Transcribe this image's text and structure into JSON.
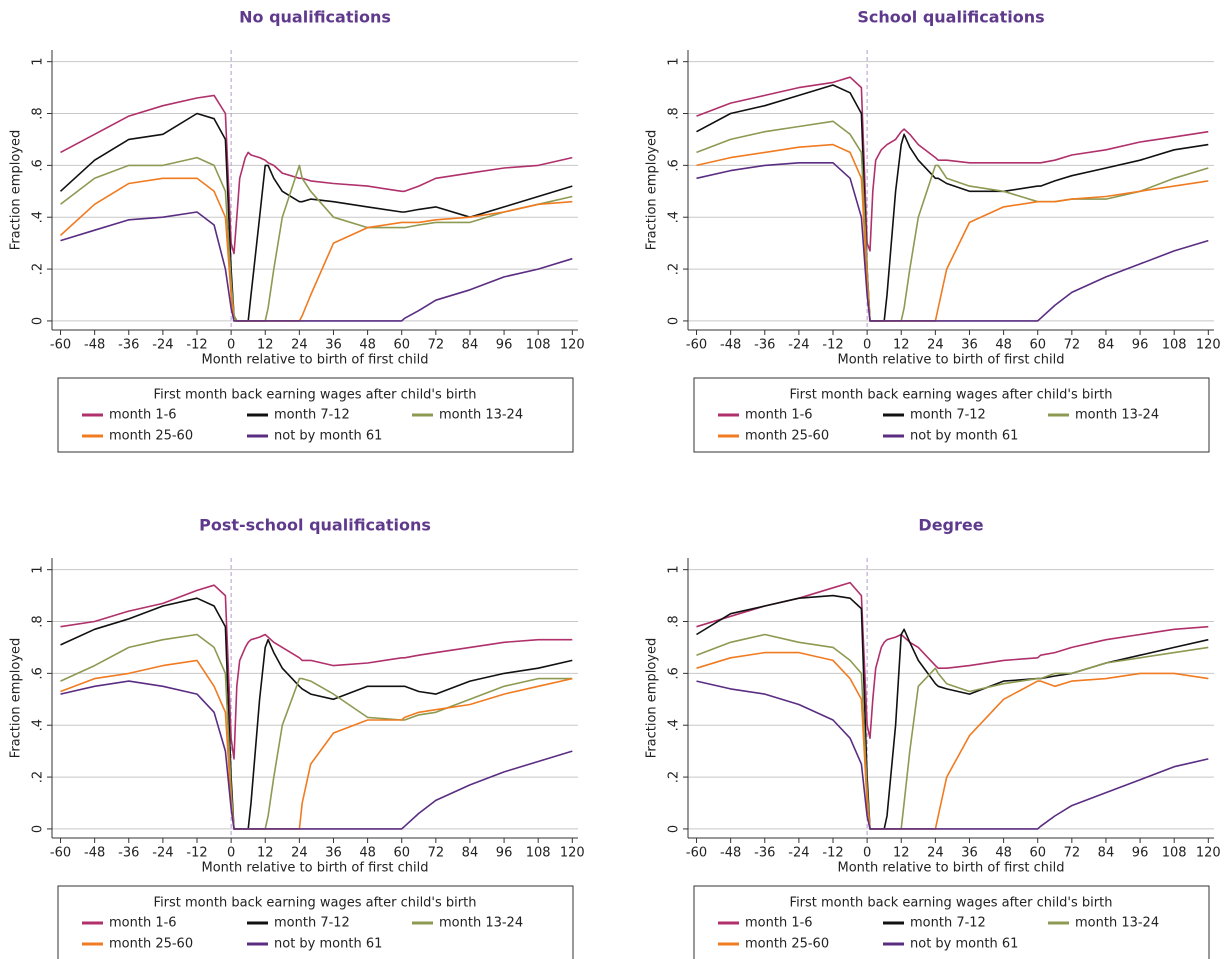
{
  "chart_data": [
    {
      "type": "line",
      "title": "No qualifications",
      "x_label": "Month relative to birth of first child",
      "y_label": "Fraction employed",
      "legend_title": "First month back earning wages after child's birth",
      "x": [
        -60,
        -48,
        -36,
        -24,
        -12,
        -6,
        -2,
        0,
        1,
        2,
        3,
        5,
        6,
        7,
        10,
        12,
        13,
        15,
        18,
        24,
        25,
        28,
        36,
        48,
        60,
        61,
        66,
        72,
        84,
        96,
        108,
        120
      ],
      "series": [
        {
          "name": "month 1-6",
          "color": "#b0306b",
          "values": [
            0.65,
            0.72,
            0.79,
            0.83,
            0.86,
            0.87,
            0.8,
            0.3,
            0.26,
            0.4,
            0.55,
            0.63,
            0.65,
            0.64,
            0.63,
            0.62,
            0.61,
            0.6,
            0.57,
            0.55,
            0.55,
            0.54,
            0.53,
            0.52,
            0.5,
            0.5,
            0.52,
            0.55,
            0.57,
            0.59,
            0.6,
            0.63
          ]
        },
        {
          "name": "month 7-12",
          "color": "#111111",
          "values": [
            0.5,
            0.62,
            0.7,
            0.72,
            0.8,
            0.78,
            0.7,
            0.2,
            0.02,
            0,
            0,
            0,
            0,
            0.1,
            0.4,
            0.6,
            0.6,
            0.55,
            0.5,
            0.46,
            0.46,
            0.47,
            0.46,
            0.44,
            0.42,
            0.42,
            0.43,
            0.44,
            0.4,
            0.44,
            0.48,
            0.52
          ]
        },
        {
          "name": "month 13-24",
          "color": "#8c9a52",
          "values": [
            0.45,
            0.55,
            0.6,
            0.6,
            0.63,
            0.6,
            0.5,
            0.15,
            0.02,
            0,
            0,
            0,
            0,
            0,
            0,
            0,
            0.05,
            0.2,
            0.4,
            0.6,
            0.55,
            0.5,
            0.4,
            0.36,
            0.36,
            0.36,
            0.37,
            0.38,
            0.38,
            0.42,
            0.45,
            0.48
          ]
        },
        {
          "name": "month 25-60",
          "color": "#f07b21",
          "values": [
            0.33,
            0.45,
            0.53,
            0.55,
            0.55,
            0.5,
            0.4,
            0.1,
            0,
            0,
            0,
            0,
            0,
            0,
            0,
            0,
            0,
            0,
            0,
            0,
            0.02,
            0.1,
            0.3,
            0.36,
            0.38,
            0.38,
            0.38,
            0.39,
            0.4,
            0.42,
            0.45,
            0.46
          ]
        },
        {
          "name": "not by month 61",
          "color": "#5a2d82",
          "values": [
            0.31,
            0.35,
            0.39,
            0.4,
            0.42,
            0.37,
            0.2,
            0.05,
            0,
            0,
            0,
            0,
            0,
            0,
            0,
            0,
            0,
            0,
            0,
            0,
            0,
            0,
            0,
            0,
            0,
            0.01,
            0.04,
            0.08,
            0.12,
            0.17,
            0.2,
            0.24
          ]
        }
      ],
      "xlim": [
        -63,
        122
      ],
      "ylim": [
        -0.035,
        1.045
      ],
      "xticks": [
        -60,
        -48,
        -36,
        -24,
        -12,
        0,
        12,
        24,
        36,
        48,
        60,
        72,
        84,
        96,
        108,
        120
      ],
      "yticks": [
        0,
        {
          "value": 0.2,
          "label": ".2"
        },
        {
          "value": 0.4,
          "label": ".4"
        },
        {
          "value": 0.6,
          "label": ".6"
        },
        {
          "value": 0.8,
          "label": ".8"
        },
        1
      ],
      "grid": true,
      "vline": 0
    },
    {
      "type": "line",
      "title": "School qualifications",
      "x_label": "Month relative to birth of first child",
      "y_label": "Fraction employed",
      "legend_title": "First month back earning wages after child's birth",
      "x": [
        -60,
        -48,
        -36,
        -24,
        -12,
        -6,
        -2,
        0,
        1,
        2,
        3,
        5,
        6,
        7,
        10,
        12,
        13,
        15,
        18,
        24,
        25,
        28,
        36,
        48,
        60,
        61,
        66,
        72,
        84,
        96,
        108,
        120
      ],
      "series": [
        {
          "name": "month 1-6",
          "color": "#b0306b",
          "values": [
            0.79,
            0.84,
            0.87,
            0.9,
            0.92,
            0.94,
            0.9,
            0.3,
            0.27,
            0.5,
            0.62,
            0.66,
            0.67,
            0.68,
            0.7,
            0.73,
            0.74,
            0.72,
            0.68,
            0.63,
            0.62,
            0.62,
            0.61,
            0.61,
            0.61,
            0.61,
            0.62,
            0.64,
            0.66,
            0.69,
            0.71,
            0.73
          ]
        },
        {
          "name": "month 7-12",
          "color": "#111111",
          "values": [
            0.73,
            0.8,
            0.83,
            0.87,
            0.91,
            0.88,
            0.8,
            0.2,
            0,
            0,
            0,
            0,
            0,
            0.1,
            0.5,
            0.68,
            0.72,
            0.67,
            0.62,
            0.55,
            0.55,
            0.53,
            0.5,
            0.5,
            0.52,
            0.52,
            0.54,
            0.56,
            0.59,
            0.62,
            0.66,
            0.68
          ]
        },
        {
          "name": "month 13-24",
          "color": "#8c9a52",
          "values": [
            0.65,
            0.7,
            0.73,
            0.75,
            0.77,
            0.72,
            0.65,
            0.2,
            0,
            0,
            0,
            0,
            0,
            0,
            0,
            0,
            0.05,
            0.2,
            0.4,
            0.6,
            0.6,
            0.55,
            0.52,
            0.5,
            0.46,
            0.46,
            0.46,
            0.47,
            0.47,
            0.5,
            0.55,
            0.59
          ]
        },
        {
          "name": "month 25-60",
          "color": "#f07b21",
          "values": [
            0.6,
            0.63,
            0.65,
            0.67,
            0.68,
            0.65,
            0.55,
            0.15,
            0,
            0,
            0,
            0,
            0,
            0,
            0,
            0,
            0,
            0,
            0,
            0,
            0.05,
            0.2,
            0.38,
            0.44,
            0.46,
            0.46,
            0.46,
            0.47,
            0.48,
            0.5,
            0.52,
            0.54
          ]
        },
        {
          "name": "not by month 61",
          "color": "#5a2d82",
          "values": [
            0.55,
            0.58,
            0.6,
            0.61,
            0.61,
            0.55,
            0.4,
            0.1,
            0,
            0,
            0,
            0,
            0,
            0,
            0,
            0,
            0,
            0,
            0,
            0,
            0,
            0,
            0,
            0,
            0,
            0.01,
            0.06,
            0.11,
            0.17,
            0.22,
            0.27,
            0.31
          ]
        }
      ],
      "xlim": [
        -63,
        122
      ],
      "ylim": [
        -0.035,
        1.045
      ],
      "xticks": [
        -60,
        -48,
        -36,
        -24,
        -12,
        0,
        12,
        24,
        36,
        48,
        60,
        72,
        84,
        96,
        108,
        120
      ],
      "yticks": [
        0,
        {
          "value": 0.2,
          "label": ".2"
        },
        {
          "value": 0.4,
          "label": ".4"
        },
        {
          "value": 0.6,
          "label": ".6"
        },
        {
          "value": 0.8,
          "label": ".8"
        },
        1
      ],
      "grid": true,
      "vline": 0
    },
    {
      "type": "line",
      "title": "Post-school qualifications",
      "x_label": "Month relative to birth of first child",
      "y_label": "Fraction employed",
      "legend_title": "First month back earning wages after child's birth",
      "x": [
        -60,
        -48,
        -36,
        -24,
        -12,
        -6,
        -2,
        0,
        1,
        2,
        3,
        5,
        6,
        7,
        10,
        12,
        13,
        15,
        18,
        24,
        25,
        28,
        36,
        48,
        60,
        61,
        66,
        72,
        84,
        96,
        108,
        120
      ],
      "series": [
        {
          "name": "month 1-6",
          "color": "#b0306b",
          "values": [
            0.78,
            0.8,
            0.84,
            0.87,
            0.92,
            0.94,
            0.9,
            0.35,
            0.27,
            0.55,
            0.65,
            0.7,
            0.72,
            0.73,
            0.74,
            0.75,
            0.74,
            0.72,
            0.7,
            0.66,
            0.65,
            0.65,
            0.63,
            0.64,
            0.66,
            0.66,
            0.67,
            0.68,
            0.7,
            0.72,
            0.73,
            0.73
          ]
        },
        {
          "name": "month 7-12",
          "color": "#111111",
          "values": [
            0.71,
            0.77,
            0.81,
            0.86,
            0.89,
            0.86,
            0.78,
            0.2,
            0,
            0,
            0,
            0,
            0,
            0.1,
            0.5,
            0.7,
            0.73,
            0.68,
            0.62,
            0.55,
            0.54,
            0.52,
            0.5,
            0.55,
            0.55,
            0.55,
            0.53,
            0.52,
            0.57,
            0.6,
            0.62,
            0.65
          ]
        },
        {
          "name": "month 13-24",
          "color": "#8c9a52",
          "values": [
            0.57,
            0.63,
            0.7,
            0.73,
            0.75,
            0.7,
            0.6,
            0.15,
            0,
            0,
            0,
            0,
            0,
            0,
            0,
            0,
            0.05,
            0.2,
            0.4,
            0.58,
            0.58,
            0.57,
            0.52,
            0.43,
            0.42,
            0.42,
            0.44,
            0.45,
            0.5,
            0.55,
            0.58,
            0.58
          ]
        },
        {
          "name": "month 25-60",
          "color": "#f07b21",
          "values": [
            0.53,
            0.58,
            0.6,
            0.63,
            0.65,
            0.55,
            0.45,
            0.1,
            0,
            0,
            0,
            0,
            0,
            0,
            0,
            0,
            0,
            0,
            0,
            0,
            0.1,
            0.25,
            0.37,
            0.42,
            0.42,
            0.43,
            0.45,
            0.46,
            0.48,
            0.52,
            0.55,
            0.58
          ]
        },
        {
          "name": "not by month 61",
          "color": "#5a2d82",
          "values": [
            0.52,
            0.55,
            0.57,
            0.55,
            0.52,
            0.45,
            0.3,
            0.08,
            0,
            0,
            0,
            0,
            0,
            0,
            0,
            0,
            0,
            0,
            0,
            0,
            0,
            0,
            0,
            0,
            0,
            0.01,
            0.06,
            0.11,
            0.17,
            0.22,
            0.26,
            0.3
          ]
        }
      ],
      "xlim": [
        -63,
        122
      ],
      "ylim": [
        -0.035,
        1.045
      ],
      "xticks": [
        -60,
        -48,
        -36,
        -24,
        -12,
        0,
        12,
        24,
        36,
        48,
        60,
        72,
        84,
        96,
        108,
        120
      ],
      "yticks": [
        0,
        {
          "value": 0.2,
          "label": ".2"
        },
        {
          "value": 0.4,
          "label": ".4"
        },
        {
          "value": 0.6,
          "label": ".6"
        },
        {
          "value": 0.8,
          "label": ".8"
        },
        1
      ],
      "grid": true,
      "vline": 0
    },
    {
      "type": "line",
      "title": "Degree",
      "x_label": "Month relative to birth of first child",
      "y_label": "Fraction employed",
      "legend_title": "First month back earning wages after child's birth",
      "x": [
        -60,
        -48,
        -36,
        -24,
        -12,
        -6,
        -2,
        0,
        1,
        2,
        3,
        5,
        6,
        7,
        10,
        12,
        13,
        15,
        18,
        24,
        25,
        28,
        36,
        48,
        60,
        61,
        66,
        72,
        84,
        96,
        108,
        120
      ],
      "series": [
        {
          "name": "month 1-6",
          "color": "#b0306b",
          "values": [
            0.78,
            0.82,
            0.86,
            0.89,
            0.93,
            0.95,
            0.9,
            0.4,
            0.35,
            0.5,
            0.62,
            0.7,
            0.72,
            0.73,
            0.74,
            0.75,
            0.74,
            0.72,
            0.7,
            0.63,
            0.62,
            0.62,
            0.63,
            0.65,
            0.66,
            0.67,
            0.68,
            0.7,
            0.73,
            0.75,
            0.77,
            0.78
          ]
        },
        {
          "name": "month 7-12",
          "color": "#111111",
          "values": [
            0.75,
            0.83,
            0.86,
            0.89,
            0.9,
            0.89,
            0.85,
            0.2,
            0,
            0,
            0,
            0,
            0,
            0.05,
            0.4,
            0.75,
            0.77,
            0.72,
            0.65,
            0.56,
            0.55,
            0.54,
            0.52,
            0.57,
            0.58,
            0.58,
            0.59,
            0.6,
            0.64,
            0.67,
            0.7,
            0.73
          ]
        },
        {
          "name": "month 13-24",
          "color": "#8c9a52",
          "values": [
            0.67,
            0.72,
            0.75,
            0.72,
            0.7,
            0.65,
            0.6,
            0.15,
            0,
            0,
            0,
            0,
            0,
            0,
            0,
            0,
            0.1,
            0.3,
            0.55,
            0.62,
            0.6,
            0.56,
            0.53,
            0.56,
            0.58,
            0.58,
            0.6,
            0.6,
            0.64,
            0.66,
            0.68,
            0.7
          ]
        },
        {
          "name": "month 25-60",
          "color": "#f07b21",
          "values": [
            0.62,
            0.66,
            0.68,
            0.68,
            0.65,
            0.58,
            0.5,
            0.1,
            0,
            0,
            0,
            0,
            0,
            0,
            0,
            0,
            0,
            0,
            0,
            0,
            0.05,
            0.2,
            0.36,
            0.5,
            0.57,
            0.57,
            0.55,
            0.57,
            0.58,
            0.6,
            0.6,
            0.58
          ]
        },
        {
          "name": "not by month 61",
          "color": "#5a2d82",
          "values": [
            0.57,
            0.54,
            0.52,
            0.48,
            0.42,
            0.35,
            0.25,
            0.05,
            0,
            0,
            0,
            0,
            0,
            0,
            0,
            0,
            0,
            0,
            0,
            0,
            0,
            0,
            0,
            0,
            0,
            0.01,
            0.05,
            0.09,
            0.14,
            0.19,
            0.24,
            0.27
          ]
        }
      ],
      "xlim": [
        -63,
        122
      ],
      "ylim": [
        -0.035,
        1.045
      ],
      "xticks": [
        -60,
        -48,
        -36,
        -24,
        -12,
        0,
        12,
        24,
        36,
        48,
        60,
        72,
        84,
        96,
        108,
        120
      ],
      "yticks": [
        0,
        {
          "value": 0.2,
          "label": ".2"
        },
        {
          "value": 0.4,
          "label": ".4"
        },
        {
          "value": 0.6,
          "label": ".6"
        },
        {
          "value": 0.8,
          "label": ".8"
        },
        1
      ],
      "grid": true,
      "vline": 0
    }
  ]
}
